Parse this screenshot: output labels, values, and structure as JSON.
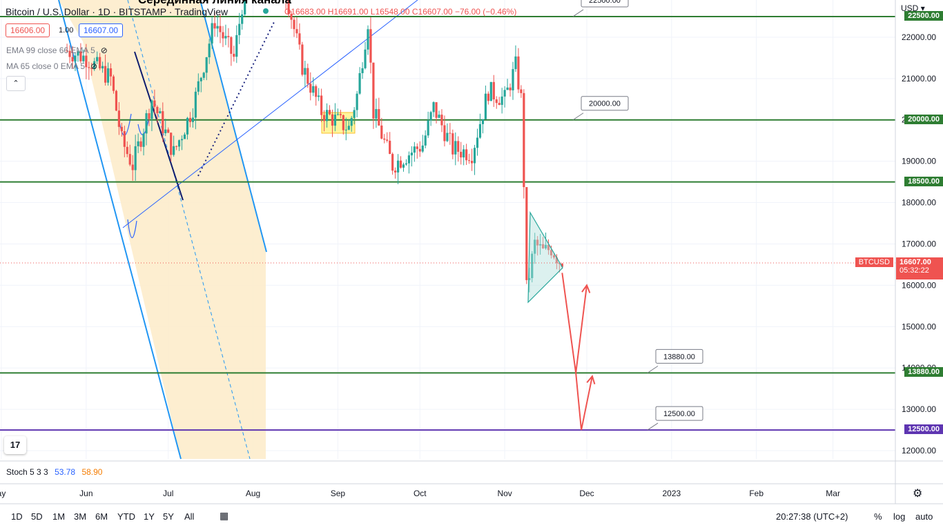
{
  "header": {
    "symbol_title": "Bitcoin / U.S. Dollar · 1D · BITSTAMP · TradingView",
    "overlay_title": "Серединная линия канала",
    "ohlc": {
      "o": "O16683.00",
      "h": "H16691.00",
      "l": "L16548.00",
      "c": "C16607.00",
      "chg": "−76.00 (−0.46%)"
    },
    "sell_price": "16606.00",
    "spread": "1.00",
    "buy_price": "16607.00"
  },
  "indicators": {
    "ema": "EMA 99 close 66 EMA 5",
    "ma": "MA 65 close 0 EMA 5",
    "collapse_icon": "chevron-up-icon"
  },
  "stoch": {
    "label": "Stoch 5 3 3",
    "k": "53.78",
    "d": "58.90"
  },
  "price_axis": {
    "currency": "USD",
    "ticks": [
      "22000.00",
      "21000.00",
      "20000.00",
      "19000.00",
      "18000.00",
      "17000.00",
      "16000.00",
      "15000.00",
      "14000.00",
      "13000.00",
      "12000.00"
    ],
    "badges": [
      "22500.00",
      "20000.00",
      "18500.00",
      "13880.00",
      "12500.00"
    ],
    "current_price": "16607.00",
    "countdown": "05:32:22",
    "symbol_tag": "BTCUSD"
  },
  "time_axis": [
    "ay",
    "Jun",
    "Jul",
    "Aug",
    "Sep",
    "Oct",
    "Nov",
    "Dec",
    "2023",
    "Feb",
    "Mar"
  ],
  "bottom_bar": {
    "ranges": [
      "1D",
      "5D",
      "1M",
      "3M",
      "6M",
      "YTD",
      "1Y",
      "5Y",
      "All"
    ],
    "clock": "20:27:38 (UTC+2)",
    "percent": "%",
    "log": "log",
    "auto": "auto"
  },
  "chart_data": {
    "type": "candlestick",
    "series_name": "BTCUSD",
    "ylim": [
      11800,
      22900
    ],
    "x_range": [
      "May",
      "Mar"
    ],
    "levels": [
      {
        "value": 22500,
        "label": "22500.00",
        "color": "#2e7d32"
      },
      {
        "value": 20000,
        "label": "20000.00",
        "color": "#2e7d32"
      },
      {
        "value": 18500,
        "label": "18500.00",
        "color": "#2e7d32"
      },
      {
        "value": 13880,
        "label": "13880.00",
        "color": "#2e7d32"
      },
      {
        "value": 12500,
        "label": "12500.00",
        "color": "#5e35b1"
      }
    ],
    "last_price": 16607,
    "projection_path": [
      {
        "date": "2022-11-22",
        "price": 16300
      },
      {
        "date": "2022-11-27",
        "price": 13880
      },
      {
        "date": "2022-12-01",
        "price": 16000
      }
    ],
    "projection_path_2": [
      {
        "date": "2022-11-27",
        "price": 13880
      },
      {
        "date": "2022-11-29",
        "price": 12500
      },
      {
        "date": "2022-12-03",
        "price": 13800
      }
    ],
    "colors": {
      "up": "#26a69a",
      "down": "#ef5350",
      "channel": "#2196f3",
      "channel_fill": "#fdebc8",
      "projection": "#ef5350"
    }
  }
}
